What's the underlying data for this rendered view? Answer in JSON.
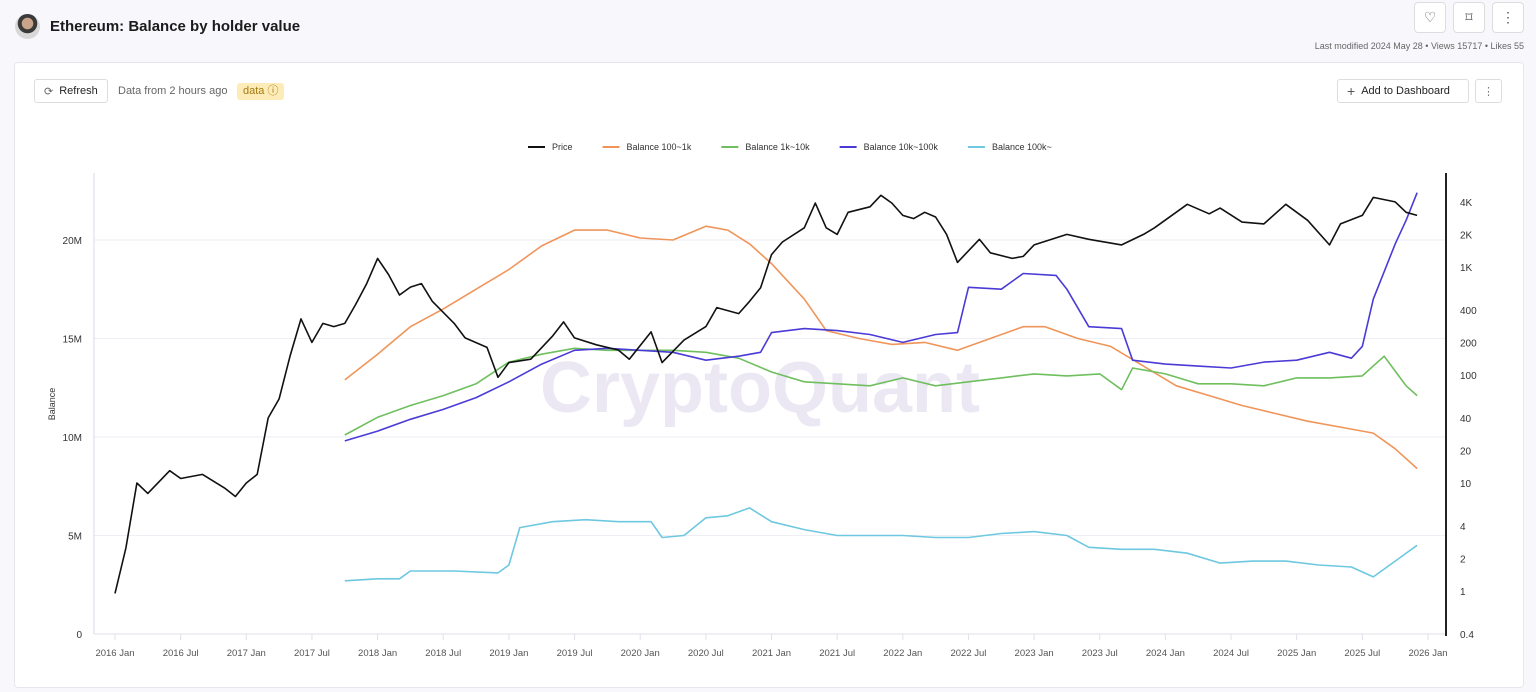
{
  "header": {
    "title": "Ethereum: Balance by holder value",
    "meta": "Last modified 2024 May 28 • Views 15717 • Likes 55",
    "icons": [
      "heart-icon",
      "bookmark-add-icon",
      "more-vertical-icon"
    ]
  },
  "toolbar": {
    "refresh_label": "Refresh",
    "data_info": "Data from 2 hours ago",
    "badge": "data",
    "add_dashboard_label": "Add to Dashboard"
  },
  "watermark": "CryptoQuant",
  "chart_data": {
    "type": "line",
    "ylabel": "Balance",
    "left_axis": {
      "ticks": [
        "0",
        "5M",
        "10M",
        "15M",
        "20M"
      ],
      "tick_values": [
        0,
        5000000,
        10000000,
        15000000,
        20000000
      ],
      "range": [
        0,
        23400000
      ]
    },
    "right_axis": {
      "scale": "log",
      "ticks": [
        "0.4",
        "1",
        "2",
        "4",
        "10",
        "20",
        "40",
        "100",
        "200",
        "400",
        "1K",
        "2K",
        "4K"
      ],
      "tick_values": [
        0.4,
        1,
        2,
        4,
        10,
        20,
        40,
        100,
        200,
        400,
        1000,
        2000,
        4000
      ],
      "range": [
        0.4,
        7400
      ]
    },
    "x_ticks": [
      "2016 Jan",
      "2016 Jul",
      "2017 Jan",
      "2017 Jul",
      "2018 Jan",
      "2018 Jul",
      "2019 Jan",
      "2019 Jul",
      "2020 Jan",
      "2020 Jul",
      "2021 Jan",
      "2021 Jul",
      "2022 Jan",
      "2022 Jul",
      "2023 Jan",
      "2023 Jul",
      "2024 Jan",
      "2024 Jul",
      "2025 Jan",
      "2025 Jul",
      "2026 Jan"
    ],
    "x_range": [
      "2015-10",
      "2026-03"
    ],
    "grid": true,
    "legend_position": "top",
    "series": [
      {
        "name": "Price",
        "axis": "right",
        "color": "#111111",
        "points": [
          [
            "2016-01",
            0.95
          ],
          [
            "2016-02",
            2.5
          ],
          [
            "2016-03",
            10
          ],
          [
            "2016-04",
            8
          ],
          [
            "2016-06",
            13
          ],
          [
            "2016-07",
            11
          ],
          [
            "2016-09",
            12
          ],
          [
            "2016-11",
            9
          ],
          [
            "2016-12",
            7.5
          ],
          [
            "2017-01",
            10
          ],
          [
            "2017-02",
            12
          ],
          [
            "2017-03",
            40
          ],
          [
            "2017-04",
            60
          ],
          [
            "2017-05",
            150
          ],
          [
            "2017-06",
            330
          ],
          [
            "2017-07",
            200
          ],
          [
            "2017-08",
            300
          ],
          [
            "2017-09",
            280
          ],
          [
            "2017-10",
            300
          ],
          [
            "2017-11",
            450
          ],
          [
            "2017-12",
            700
          ],
          [
            "2018-01",
            1200
          ],
          [
            "2018-02",
            850
          ],
          [
            "2018-03",
            550
          ],
          [
            "2018-04",
            650
          ],
          [
            "2018-05",
            700
          ],
          [
            "2018-06",
            480
          ],
          [
            "2018-08",
            300
          ],
          [
            "2018-09",
            220
          ],
          [
            "2018-11",
            180
          ],
          [
            "2018-12",
            95
          ],
          [
            "2019-01",
            130
          ],
          [
            "2019-03",
            140
          ],
          [
            "2019-05",
            230
          ],
          [
            "2019-06",
            310
          ],
          [
            "2019-07",
            220
          ],
          [
            "2019-09",
            190
          ],
          [
            "2019-11",
            170
          ],
          [
            "2019-12",
            140
          ],
          [
            "2020-02",
            250
          ],
          [
            "2020-03",
            130
          ],
          [
            "2020-05",
            210
          ],
          [
            "2020-07",
            280
          ],
          [
            "2020-08",
            420
          ],
          [
            "2020-10",
            370
          ],
          [
            "2020-11",
            480
          ],
          [
            "2020-12",
            640
          ],
          [
            "2021-01",
            1300
          ],
          [
            "2021-02",
            1700
          ],
          [
            "2021-04",
            2300
          ],
          [
            "2021-05",
            3900
          ],
          [
            "2021-06",
            2300
          ],
          [
            "2021-07",
            2000
          ],
          [
            "2021-08",
            3200
          ],
          [
            "2021-10",
            3600
          ],
          [
            "2021-11",
            4600
          ],
          [
            "2021-12",
            3900
          ],
          [
            "2022-01",
            3000
          ],
          [
            "2022-02",
            2800
          ],
          [
            "2022-03",
            3200
          ],
          [
            "2022-04",
            2900
          ],
          [
            "2022-05",
            2000
          ],
          [
            "2022-06",
            1100
          ],
          [
            "2022-08",
            1800
          ],
          [
            "2022-09",
            1350
          ],
          [
            "2022-11",
            1200
          ],
          [
            "2022-12",
            1250
          ],
          [
            "2023-01",
            1600
          ],
          [
            "2023-04",
            2000
          ],
          [
            "2023-06",
            1800
          ],
          [
            "2023-09",
            1600
          ],
          [
            "2023-11",
            2000
          ],
          [
            "2023-12",
            2300
          ],
          [
            "2024-03",
            3800
          ],
          [
            "2024-05",
            3100
          ],
          [
            "2024-06",
            3500
          ],
          [
            "2024-08",
            2600
          ],
          [
            "2024-10",
            2500
          ],
          [
            "2024-12",
            3800
          ],
          [
            "2025-02",
            2700
          ],
          [
            "2025-04",
            1600
          ],
          [
            "2025-05",
            2500
          ],
          [
            "2025-07",
            3000
          ],
          [
            "2025-08",
            4400
          ],
          [
            "2025-10",
            4000
          ],
          [
            "2025-11",
            3200
          ],
          [
            "2025-12",
            3000
          ]
        ]
      },
      {
        "name": "Balance 100~1k",
        "axis": "left",
        "color": "#f0955a",
        "points": [
          [
            "2017-10",
            12900000
          ],
          [
            "2018-01",
            14200000
          ],
          [
            "2018-04",
            15600000
          ],
          [
            "2018-07",
            16500000
          ],
          [
            "2018-10",
            17500000
          ],
          [
            "2019-01",
            18500000
          ],
          [
            "2019-04",
            19700000
          ],
          [
            "2019-07",
            20500000
          ],
          [
            "2019-10",
            20500000
          ],
          [
            "2020-01",
            20100000
          ],
          [
            "2020-04",
            20000000
          ],
          [
            "2020-07",
            20700000
          ],
          [
            "2020-09",
            20500000
          ],
          [
            "2020-11",
            19800000
          ],
          [
            "2021-01",
            18800000
          ],
          [
            "2021-04",
            17000000
          ],
          [
            "2021-06",
            15400000
          ],
          [
            "2021-09",
            15000000
          ],
          [
            "2021-12",
            14700000
          ],
          [
            "2022-03",
            14800000
          ],
          [
            "2022-06",
            14400000
          ],
          [
            "2022-09",
            15000000
          ],
          [
            "2022-12",
            15600000
          ],
          [
            "2023-02",
            15600000
          ],
          [
            "2023-05",
            15000000
          ],
          [
            "2023-08",
            14600000
          ],
          [
            "2023-11",
            13600000
          ],
          [
            "2024-02",
            12600000
          ],
          [
            "2024-05",
            12100000
          ],
          [
            "2024-08",
            11600000
          ],
          [
            "2024-11",
            11200000
          ],
          [
            "2025-02",
            10800000
          ],
          [
            "2025-05",
            10500000
          ],
          [
            "2025-08",
            10200000
          ],
          [
            "2025-10",
            9400000
          ],
          [
            "2025-12",
            8400000
          ]
        ]
      },
      {
        "name": "Balance 1k~10k",
        "axis": "left",
        "color": "#6fbf5e",
        "points": [
          [
            "2017-10",
            10100000
          ],
          [
            "2018-01",
            11000000
          ],
          [
            "2018-04",
            11600000
          ],
          [
            "2018-07",
            12100000
          ],
          [
            "2018-10",
            12700000
          ],
          [
            "2019-01",
            13800000
          ],
          [
            "2019-04",
            14200000
          ],
          [
            "2019-07",
            14500000
          ],
          [
            "2019-10",
            14400000
          ],
          [
            "2020-01",
            14400000
          ],
          [
            "2020-04",
            14400000
          ],
          [
            "2020-07",
            14300000
          ],
          [
            "2020-10",
            14000000
          ],
          [
            "2021-01",
            13300000
          ],
          [
            "2021-04",
            12800000
          ],
          [
            "2021-07",
            12700000
          ],
          [
            "2021-10",
            12600000
          ],
          [
            "2022-01",
            13000000
          ],
          [
            "2022-04",
            12600000
          ],
          [
            "2022-07",
            12800000
          ],
          [
            "2022-10",
            13000000
          ],
          [
            "2023-01",
            13200000
          ],
          [
            "2023-04",
            13100000
          ],
          [
            "2023-07",
            13200000
          ],
          [
            "2023-09",
            12400000
          ],
          [
            "2023-10",
            13500000
          ],
          [
            "2024-01",
            13200000
          ],
          [
            "2024-04",
            12700000
          ],
          [
            "2024-07",
            12700000
          ],
          [
            "2024-10",
            12600000
          ],
          [
            "2025-01",
            13000000
          ],
          [
            "2025-04",
            13000000
          ],
          [
            "2025-07",
            13100000
          ],
          [
            "2025-09",
            14100000
          ],
          [
            "2025-11",
            12600000
          ],
          [
            "2025-12",
            12100000
          ]
        ]
      },
      {
        "name": "Balance 10k~100k",
        "axis": "left",
        "color": "#4b3bd6",
        "points": [
          [
            "2017-10",
            9800000
          ],
          [
            "2018-01",
            10300000
          ],
          [
            "2018-04",
            10900000
          ],
          [
            "2018-07",
            11400000
          ],
          [
            "2018-10",
            12000000
          ],
          [
            "2019-01",
            12800000
          ],
          [
            "2019-04",
            13700000
          ],
          [
            "2019-07",
            14400000
          ],
          [
            "2019-10",
            14500000
          ],
          [
            "2020-01",
            14400000
          ],
          [
            "2020-04",
            14300000
          ],
          [
            "2020-07",
            13900000
          ],
          [
            "2020-10",
            14100000
          ],
          [
            "2020-12",
            14300000
          ],
          [
            "2021-01",
            15300000
          ],
          [
            "2021-04",
            15500000
          ],
          [
            "2021-07",
            15400000
          ],
          [
            "2021-10",
            15200000
          ],
          [
            "2022-01",
            14800000
          ],
          [
            "2022-04",
            15200000
          ],
          [
            "2022-06",
            15300000
          ],
          [
            "2022-07",
            17600000
          ],
          [
            "2022-10",
            17500000
          ],
          [
            "2022-12",
            18300000
          ],
          [
            "2023-03",
            18200000
          ],
          [
            "2023-04",
            17500000
          ],
          [
            "2023-06",
            15600000
          ],
          [
            "2023-09",
            15500000
          ],
          [
            "2023-10",
            13900000
          ],
          [
            "2024-01",
            13700000
          ],
          [
            "2024-04",
            13600000
          ],
          [
            "2024-07",
            13500000
          ],
          [
            "2024-10",
            13800000
          ],
          [
            "2025-01",
            13900000
          ],
          [
            "2025-04",
            14300000
          ],
          [
            "2025-06",
            14000000
          ],
          [
            "2025-07",
            14600000
          ],
          [
            "2025-08",
            17000000
          ],
          [
            "2025-10",
            19800000
          ],
          [
            "2025-11",
            21000000
          ],
          [
            "2025-12",
            22400000
          ]
        ]
      },
      {
        "name": "Balance 100k~",
        "axis": "left",
        "color": "#6ec8e0",
        "points": [
          [
            "2017-10",
            2700000
          ],
          [
            "2018-01",
            2800000
          ],
          [
            "2018-03",
            2800000
          ],
          [
            "2018-04",
            3200000
          ],
          [
            "2018-08",
            3200000
          ],
          [
            "2018-12",
            3100000
          ],
          [
            "2019-01",
            3500000
          ],
          [
            "2019-02",
            5400000
          ],
          [
            "2019-05",
            5700000
          ],
          [
            "2019-08",
            5800000
          ],
          [
            "2019-11",
            5700000
          ],
          [
            "2020-02",
            5700000
          ],
          [
            "2020-03",
            4900000
          ],
          [
            "2020-05",
            5000000
          ],
          [
            "2020-07",
            5900000
          ],
          [
            "2020-09",
            6000000
          ],
          [
            "2020-11",
            6400000
          ],
          [
            "2021-01",
            5700000
          ],
          [
            "2021-04",
            5300000
          ],
          [
            "2021-07",
            5000000
          ],
          [
            "2021-10",
            5000000
          ],
          [
            "2022-01",
            5000000
          ],
          [
            "2022-04",
            4900000
          ],
          [
            "2022-07",
            4900000
          ],
          [
            "2022-10",
            5100000
          ],
          [
            "2023-01",
            5200000
          ],
          [
            "2023-04",
            5000000
          ],
          [
            "2023-06",
            4400000
          ],
          [
            "2023-09",
            4300000
          ],
          [
            "2023-12",
            4300000
          ],
          [
            "2024-03",
            4100000
          ],
          [
            "2024-06",
            3600000
          ],
          [
            "2024-09",
            3700000
          ],
          [
            "2024-12",
            3700000
          ],
          [
            "2025-03",
            3500000
          ],
          [
            "2025-06",
            3400000
          ],
          [
            "2025-08",
            2900000
          ],
          [
            "2025-10",
            3700000
          ],
          [
            "2025-12",
            4500000
          ]
        ]
      }
    ]
  }
}
